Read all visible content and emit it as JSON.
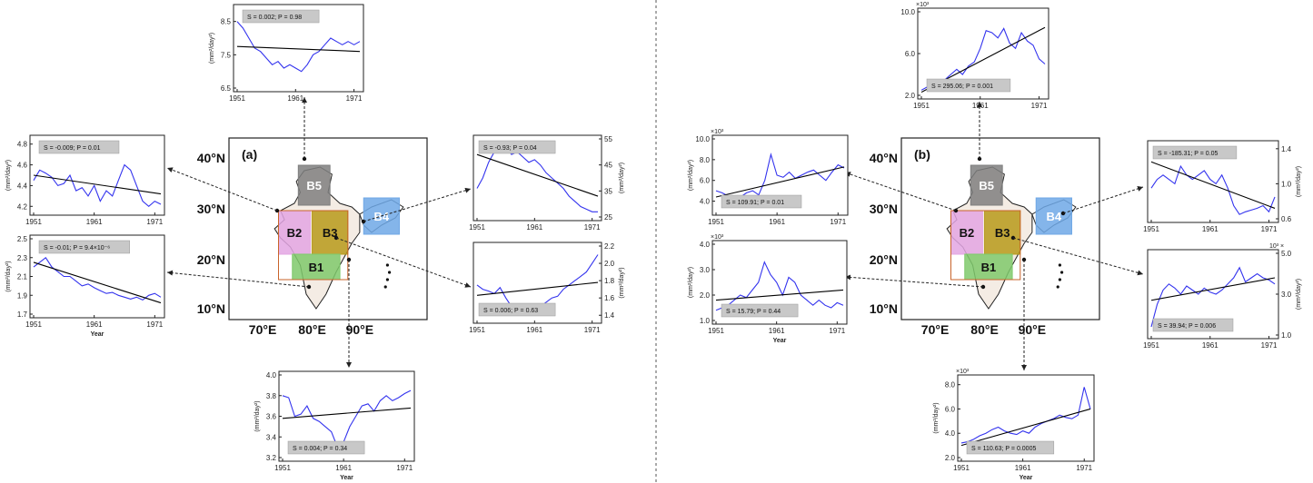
{
  "panels": [
    {
      "label": "(a)",
      "map": {
        "lon_ticks": [
          "70°E",
          "80°E",
          "90°E"
        ],
        "lat_ticks": [
          "40°N",
          "30°N",
          "20°N",
          "10°N"
        ],
        "regions": [
          {
            "name": "B5",
            "color": "#7f7f7f"
          },
          {
            "name": "B2",
            "color": "#e3a6e3"
          },
          {
            "name": "B3",
            "color": "#b79a1a"
          },
          {
            "name": "B4",
            "color": "#6fa8e6"
          },
          {
            "name": "B1",
            "color": "#7fc96b"
          }
        ]
      },
      "charts": [
        {
          "id": "a-B5",
          "region": "B5",
          "stat": "S = 0.002; P = 0.98",
          "y_ticks": [
            "8.5",
            "7.5",
            "6.5"
          ],
          "ylim": [
            6.5,
            8.9
          ],
          "x_ticks": [
            "1951",
            "1961",
            "1971"
          ],
          "y_unit": "(mm²/day²)",
          "xlabel": "",
          "exponent": "",
          "series": [
            8.5,
            8.3,
            8.0,
            7.7,
            7.6,
            7.4,
            7.2,
            7.3,
            7.1,
            7.2,
            7.1,
            7.0,
            7.2,
            7.5,
            7.6,
            7.8,
            8.0,
            7.9,
            7.8,
            7.9,
            7.8,
            7.9
          ],
          "trend": [
            7.75,
            7.6
          ]
        },
        {
          "id": "a-B2",
          "region": "B2",
          "stat": "S = -0.009; P = 0.01",
          "y_ticks": [
            "4.8",
            "4.6",
            "4.4",
            "4.2"
          ],
          "ylim": [
            4.15,
            4.85
          ],
          "x_ticks": [
            "1951",
            "1961",
            "1971"
          ],
          "y_unit": "(mm²/day²)",
          "xlabel": "",
          "exponent": "",
          "series": [
            4.45,
            4.55,
            4.52,
            4.48,
            4.4,
            4.42,
            4.5,
            4.35,
            4.38,
            4.3,
            4.4,
            4.25,
            4.35,
            4.3,
            4.45,
            4.6,
            4.55,
            4.4,
            4.25,
            4.2,
            4.25,
            4.22
          ],
          "trend": [
            4.5,
            4.32
          ]
        },
        {
          "id": "a-B1",
          "region": "B1",
          "stat": "S = -0.01; P = 9.4×10⁻⁶",
          "y_ticks": [
            "2.5",
            "2.3",
            "2.1",
            "1.9",
            "1.7"
          ],
          "ylim": [
            1.7,
            2.5
          ],
          "x_ticks": [
            "1951",
            "1961",
            "1971"
          ],
          "y_unit": "(mm²/day²)",
          "xlabel": "Year",
          "exponent": "",
          "series": [
            2.2,
            2.25,
            2.3,
            2.2,
            2.15,
            2.1,
            2.1,
            2.05,
            2.0,
            2.02,
            1.98,
            1.95,
            1.92,
            1.93,
            1.9,
            1.88,
            1.86,
            1.88,
            1.85,
            1.9,
            1.92,
            1.88
          ],
          "trend": [
            2.25,
            1.82
          ]
        },
        {
          "id": "a-B4",
          "region": "B4",
          "stat": "S = -0.93; P = 0.04",
          "y_ticks": [
            "55",
            "45",
            "35",
            "25"
          ],
          "ylim": [
            25,
            55
          ],
          "x_ticks": [
            "1951",
            "1961",
            "1971"
          ],
          "y_unit": "(mm²/day²)",
          "xlabel": "",
          "exponent": "",
          "series": [
            36,
            40,
            46,
            50,
            53,
            52,
            49,
            50,
            48,
            46,
            47,
            45,
            42,
            40,
            38,
            36,
            33,
            31,
            29,
            28,
            27,
            27
          ],
          "trend": [
            49,
            33
          ]
        },
        {
          "id": "a-B3",
          "region": "B3",
          "stat": "S = 0.006; P = 0.63",
          "y_ticks": [
            "2.2",
            "2.0",
            "1.8",
            "1.6",
            "1.4"
          ],
          "ylim": [
            1.35,
            2.2
          ],
          "x_ticks": [
            "1951",
            "1961",
            "1971"
          ],
          "y_unit": "(mm²/day²)",
          "xlabel": "",
          "exponent": "",
          "series": [
            1.75,
            1.7,
            1.68,
            1.65,
            1.72,
            1.6,
            1.5,
            1.45,
            1.42,
            1.4,
            1.45,
            1.5,
            1.55,
            1.6,
            1.62,
            1.7,
            1.75,
            1.8,
            1.85,
            1.9,
            2.0,
            2.1
          ],
          "trend": [
            1.63,
            1.78
          ]
        },
        {
          "id": "a-bottom",
          "region": "",
          "stat": "S = 0.004; P = 0.34",
          "y_ticks": [
            "4.0",
            "3.8",
            "3.6",
            "3.4",
            "3.2"
          ],
          "ylim": [
            3.2,
            4.0
          ],
          "x_ticks": [
            "1951",
            "1961",
            "1971"
          ],
          "y_unit": "(mm²/day²)",
          "xlabel": "Year",
          "exponent": "",
          "series": [
            3.8,
            3.78,
            3.6,
            3.62,
            3.7,
            3.58,
            3.55,
            3.5,
            3.45,
            3.3,
            3.35,
            3.5,
            3.6,
            3.7,
            3.72,
            3.65,
            3.75,
            3.8,
            3.75,
            3.78,
            3.82,
            3.85
          ],
          "trend": [
            3.58,
            3.68
          ]
        }
      ]
    },
    {
      "label": "(b)",
      "map": {
        "lon_ticks": [
          "70°E",
          "80°E",
          "90°E"
        ],
        "lat_ticks": [
          "40°N",
          "30°N",
          "20°N",
          "10°N"
        ],
        "regions": [
          {
            "name": "B5",
            "color": "#7f7f7f"
          },
          {
            "name": "B2",
            "color": "#e3a6e3"
          },
          {
            "name": "B3",
            "color": "#b79a1a"
          },
          {
            "name": "B4",
            "color": "#6fa8e6"
          },
          {
            "name": "B1",
            "color": "#7fc96b"
          }
        ]
      },
      "charts": [
        {
          "id": "b-B5",
          "region": "B5",
          "stat": "S = 295.06; P = 0.001",
          "y_ticks": [
            "10.0",
            "6.0",
            "2.0"
          ],
          "ylim": [
            2.0,
            10.0
          ],
          "x_ticks": [
            "1951",
            "1961",
            "1971"
          ],
          "y_unit": "",
          "xlabel": "",
          "exponent": "×10³",
          "series": [
            2.5,
            2.8,
            3.0,
            3.2,
            3.5,
            4.0,
            4.5,
            4.0,
            4.8,
            5.2,
            6.5,
            8.2,
            8.0,
            7.5,
            8.4,
            7.0,
            6.5,
            8.0,
            7.2,
            6.8,
            5.5,
            5.0
          ],
          "trend": [
            2.3,
            8.5
          ]
        },
        {
          "id": "b-B2",
          "region": "B2",
          "stat": "S = 109.91; P = 0.01",
          "y_ticks": [
            "10.0",
            "8.0",
            "6.0",
            "4.0"
          ],
          "ylim": [
            3.0,
            10.0
          ],
          "x_ticks": [
            "1951",
            "1961",
            "1971"
          ],
          "y_unit": "(mm²/day²)",
          "xlabel": "",
          "exponent": "×10³",
          "series": [
            5.0,
            4.8,
            4.5,
            4.2,
            4.4,
            4.8,
            5.0,
            4.6,
            6.0,
            8.5,
            6.5,
            6.3,
            6.8,
            6.2,
            6.5,
            6.8,
            7.0,
            6.5,
            6.0,
            6.8,
            7.5,
            7.2
          ],
          "trend": [
            4.4,
            7.3
          ]
        },
        {
          "id": "b-B1",
          "region": "B1",
          "stat": "S = 15.79; P = 0.44",
          "y_ticks": [
            "4.0",
            "3.0",
            "2.0",
            "1.0"
          ],
          "ylim": [
            1.0,
            4.0
          ],
          "x_ticks": [
            "1951",
            "1961",
            "1971"
          ],
          "y_unit": "(mm²/day²)",
          "xlabel": "Year",
          "exponent": "×10³",
          "series": [
            1.4,
            1.5,
            1.6,
            1.8,
            2.0,
            1.9,
            2.2,
            2.5,
            3.3,
            2.8,
            2.5,
            2.0,
            2.7,
            2.5,
            2.0,
            1.8,
            1.6,
            1.8,
            1.6,
            1.5,
            1.7,
            1.6
          ],
          "trend": [
            1.8,
            2.2
          ]
        },
        {
          "id": "b-B4",
          "region": "B4",
          "stat": "S = -185.31; P = 0.05",
          "y_ticks": [
            "1.4",
            "1.0",
            "0.6"
          ],
          "ylim": [
            0.6,
            1.45
          ],
          "x_ticks": [
            "1951",
            "1961",
            "1971"
          ],
          "y_unit": "(mm²/day²)",
          "xlabel": "",
          "exponent": "",
          "series": [
            0.95,
            1.05,
            1.1,
            1.05,
            1.0,
            1.2,
            1.1,
            1.05,
            1.1,
            1.15,
            1.05,
            1.0,
            1.1,
            0.95,
            0.75,
            0.65,
            0.68,
            0.7,
            0.72,
            0.75,
            0.68,
            0.85
          ],
          "trend": [
            1.25,
            0.72
          ]
        },
        {
          "id": "b-B3",
          "region": "B3",
          "stat": "S = 39.94; P = 0.006",
          "y_ticks": [
            "5.0",
            "3.0",
            "1.0"
          ],
          "ylim": [
            1.0,
            5.0
          ],
          "x_ticks": [
            "1951",
            "1961",
            "1971"
          ],
          "y_unit": "(mm²/day²)",
          "xlabel": "",
          "exponent": "10³ ×",
          "series": [
            1.4,
            2.5,
            3.2,
            3.5,
            3.3,
            3.0,
            3.4,
            3.2,
            3.0,
            3.3,
            3.1,
            3.0,
            3.2,
            3.5,
            3.8,
            4.3,
            3.6,
            3.8,
            4.0,
            3.8,
            3.7,
            3.5
          ],
          "trend": [
            2.7,
            3.8
          ]
        },
        {
          "id": "b-bottom",
          "region": "",
          "stat": "S = 110.63; P = 0.0005",
          "y_ticks": [
            "8.0",
            "6.0",
            "4.0",
            "2.0"
          ],
          "ylim": [
            2.0,
            8.5
          ],
          "x_ticks": [
            "1951",
            "1961",
            "1971"
          ],
          "y_unit": "(mm²/day²)",
          "xlabel": "Year",
          "exponent": "×10³",
          "series": [
            3.2,
            3.3,
            3.5,
            3.8,
            4.0,
            4.3,
            4.5,
            4.2,
            4.0,
            3.9,
            4.2,
            4.0,
            4.5,
            4.8,
            5.0,
            5.2,
            5.5,
            5.3,
            5.2,
            5.5,
            7.8,
            6.0
          ],
          "trend": [
            3.0,
            6.0
          ]
        }
      ]
    }
  ],
  "colors": {
    "series": "#3333ee",
    "trend": "#000000",
    "stat_bg": "#c8c8c8",
    "divider": "#555555"
  },
  "chart_data": [
    {
      "type": "line",
      "title": "",
      "panel": "(a)",
      "region": "B5",
      "x": [
        1951,
        1952,
        1953,
        1954,
        1955,
        1956,
        1957,
        1958,
        1959,
        1960,
        1961,
        1962,
        1963,
        1964,
        1965,
        1966,
        1967,
        1968,
        1969,
        1970,
        1971,
        1972
      ],
      "series": [
        {
          "values": [
            8.5,
            8.3,
            8.0,
            7.7,
            7.6,
            7.4,
            7.2,
            7.3,
            7.1,
            7.2,
            7.1,
            7.0,
            7.2,
            7.5,
            7.6,
            7.8,
            8.0,
            7.9,
            7.8,
            7.9,
            7.8,
            7.9
          ]
        }
      ],
      "ylim": [
        6.5,
        8.9
      ]
    },
    {
      "type": "line",
      "title": "",
      "panel": "(a)",
      "region": "B2",
      "x": [
        1951,
        1972
      ],
      "series": [
        {
          "values": [
            4.45,
            4.22
          ]
        }
      ],
      "ylim": [
        4.15,
        4.85
      ]
    },
    {
      "type": "line",
      "title": "",
      "panel": "(a)",
      "region": "B1",
      "x": [
        1951,
        1972
      ],
      "series": [
        {
          "values": [
            2.2,
            1.88
          ]
        }
      ],
      "ylim": [
        1.7,
        2.5
      ]
    },
    {
      "type": "line",
      "title": "",
      "panel": "(a)",
      "region": "B4",
      "x": [
        1951,
        1972
      ],
      "series": [
        {
          "values": [
            36,
            27
          ]
        }
      ],
      "ylim": [
        25,
        55
      ]
    },
    {
      "type": "line",
      "title": "",
      "panel": "(a)",
      "region": "B3",
      "x": [
        1951,
        1972
      ],
      "series": [
        {
          "values": [
            1.75,
            2.1
          ]
        }
      ],
      "ylim": [
        1.35,
        2.2
      ]
    },
    {
      "type": "line",
      "title": "",
      "panel": "(b)",
      "region": "B5",
      "x": [
        1951,
        1972
      ],
      "series": [
        {
          "values": [
            2.5,
            5.0
          ]
        }
      ],
      "ylim": [
        2.0,
        10.0
      ]
    }
  ]
}
